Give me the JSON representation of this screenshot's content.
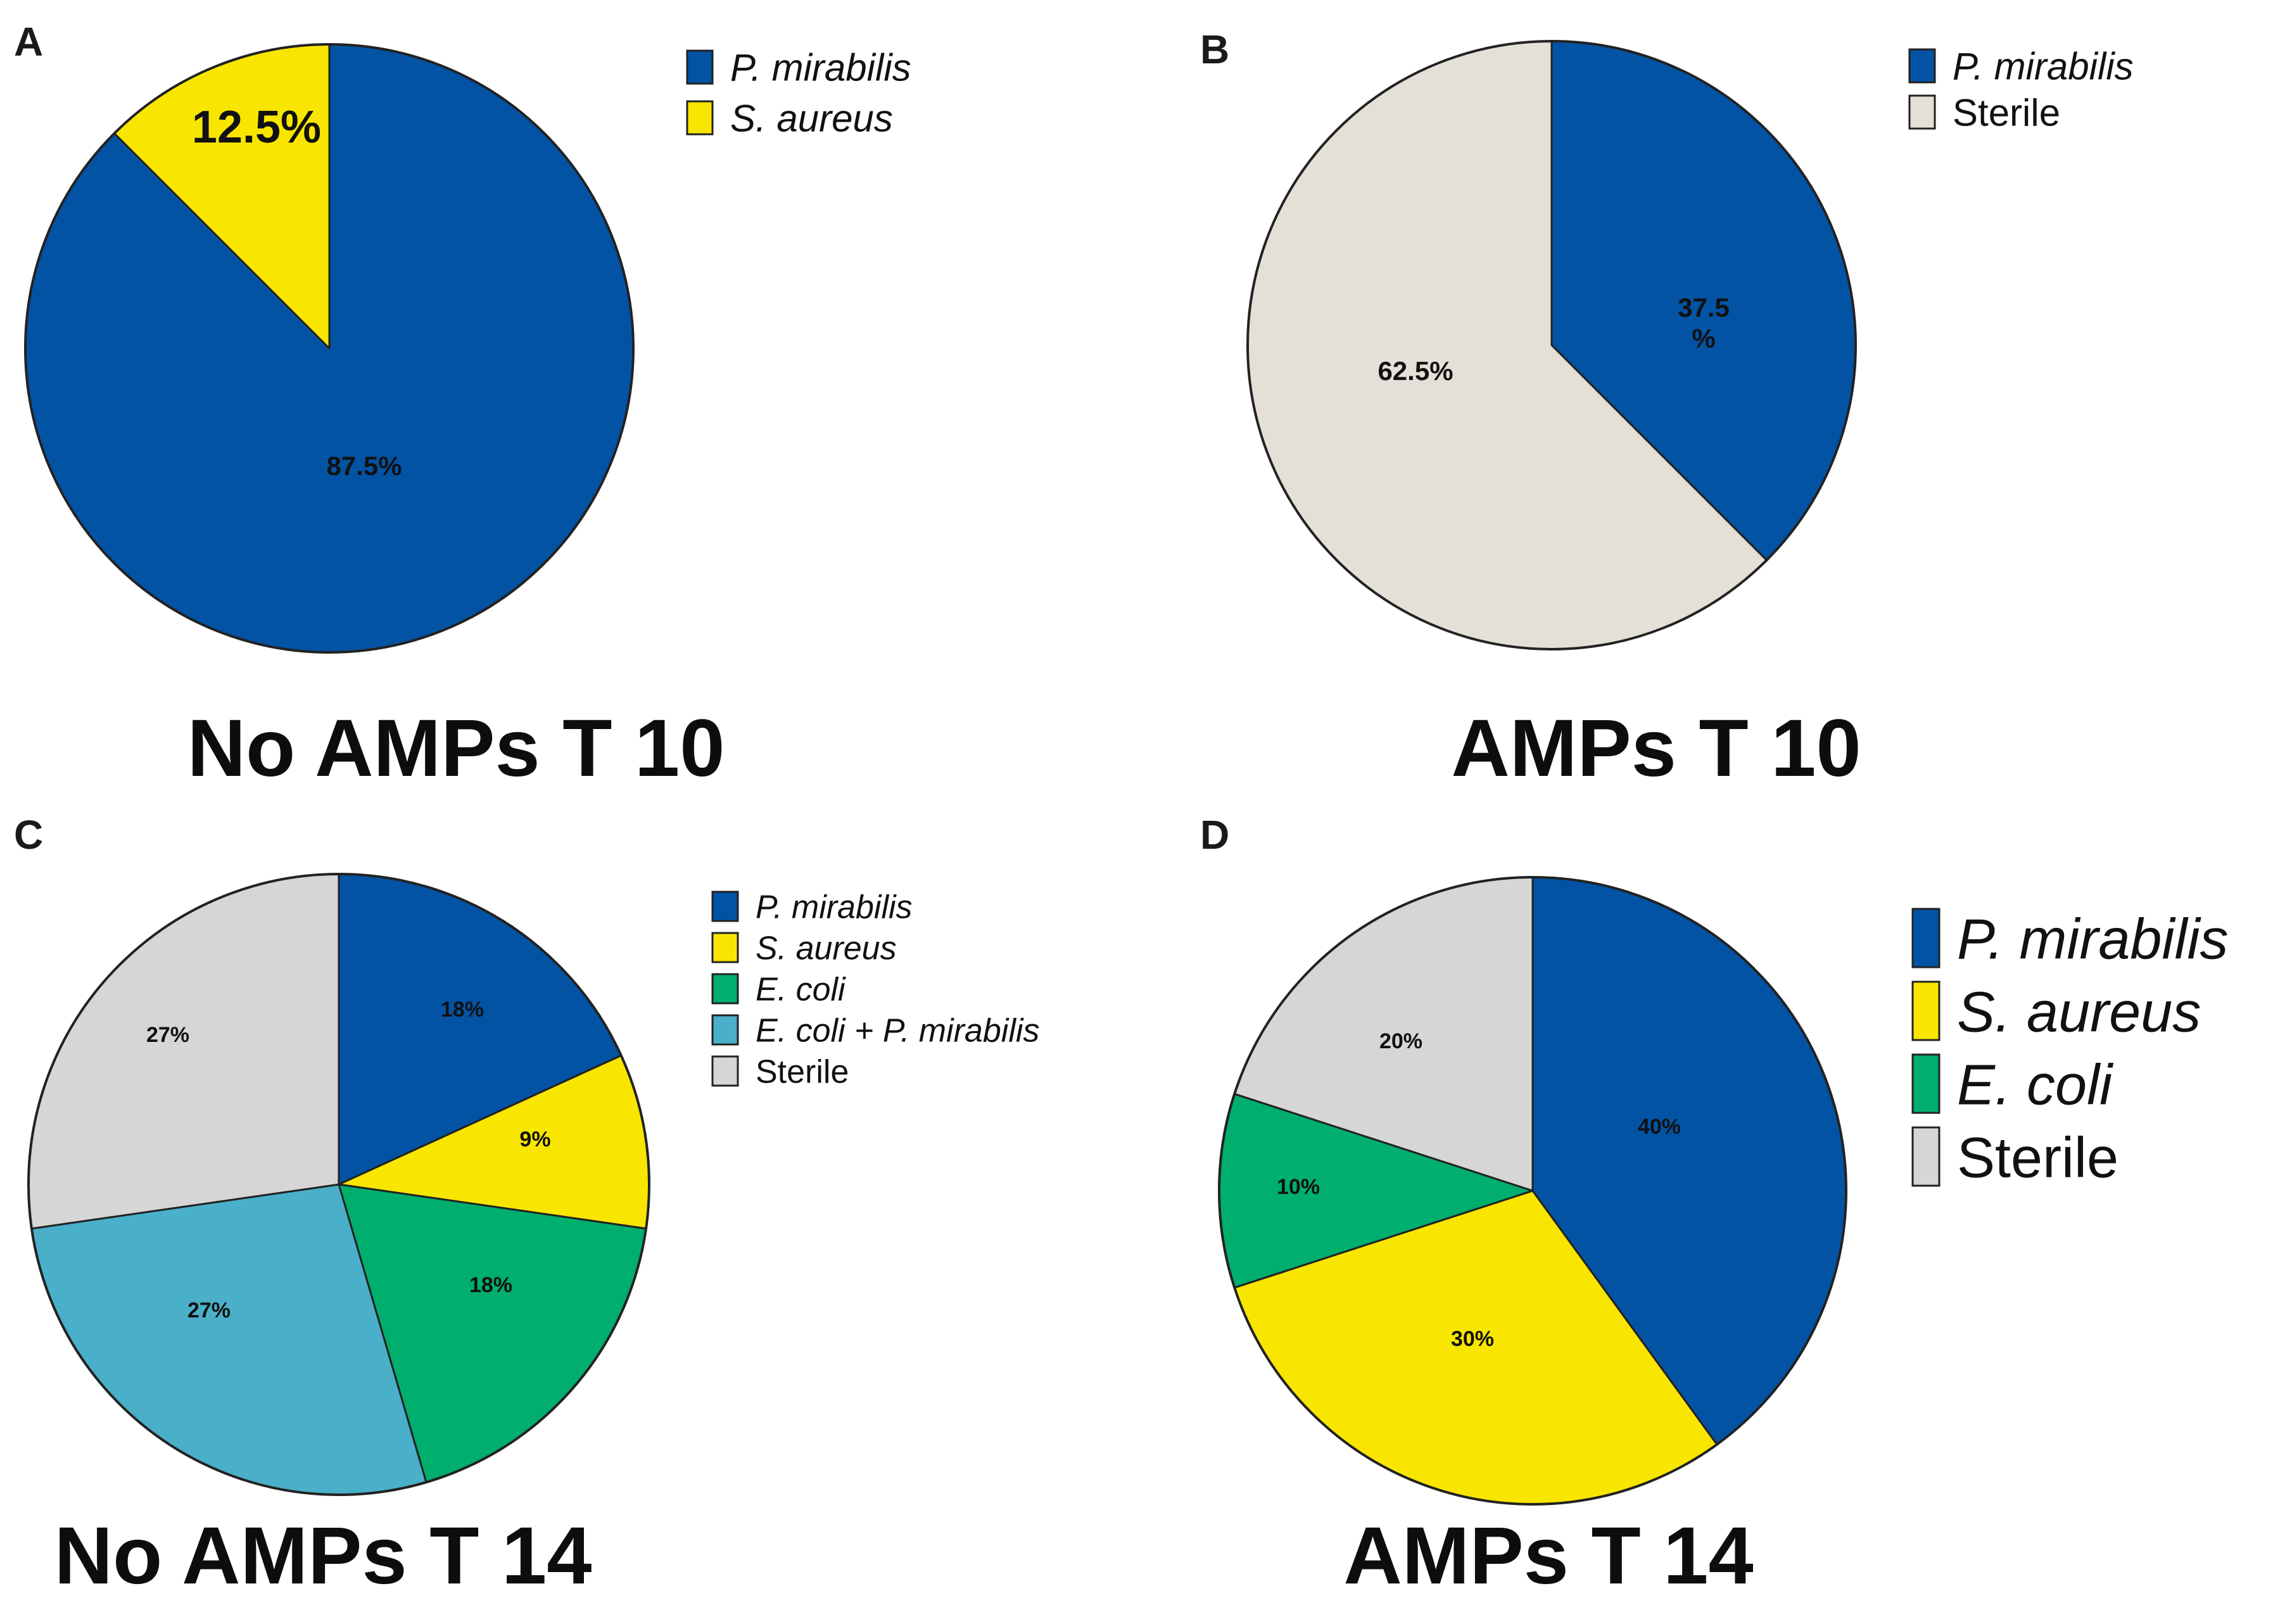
{
  "chart_data": [
    {
      "type": "pie",
      "panel": "A",
      "title": "No AMPs T 10",
      "legend": [
        {
          "label": "P. mirabilis",
          "italic": true
        },
        {
          "label": "S. aureus",
          "italic": true
        }
      ],
      "slices": [
        {
          "name": "P. mirabilis",
          "value": 87.5,
          "label": "87.5%",
          "color": "#0353A4"
        },
        {
          "name": "S. aureus",
          "value": 12.5,
          "label": "12.5%",
          "color": "#F9E600"
        }
      ]
    },
    {
      "type": "pie",
      "panel": "B",
      "title": "AMPs T 10",
      "legend": [
        {
          "label": "P. mirabilis",
          "italic": true
        },
        {
          "label": "Sterile",
          "italic": false
        }
      ],
      "slices": [
        {
          "name": "P. mirabilis",
          "value": 37.5,
          "label": "37.5 %",
          "color": "#0353A4"
        },
        {
          "name": "Sterile",
          "value": 62.5,
          "label": "62.5%",
          "color": "#E4E0D7"
        }
      ]
    },
    {
      "type": "pie",
      "panel": "C",
      "title": "No AMPs T 14",
      "legend": [
        {
          "label": "P. mirabilis",
          "italic": true
        },
        {
          "label": "S. aureus",
          "italic": true
        },
        {
          "label": "E. coli",
          "italic": true
        },
        {
          "label": "E. coli + P. mirabilis",
          "italic": true
        },
        {
          "label": "Sterile",
          "italic": false
        }
      ],
      "slices": [
        {
          "name": "P. mirabilis",
          "value": 18,
          "label": "18%",
          "color": "#0353A4"
        },
        {
          "name": "S. aureus",
          "value": 9,
          "label": "9%",
          "color": "#F9E600"
        },
        {
          "name": "E. coli",
          "value": 18,
          "label": "18%",
          "color": "#00AE6E"
        },
        {
          "name": "E. coli + P. mirabilis",
          "value": 27,
          "label": "27%",
          "color": "#4AAFC8"
        },
        {
          "name": "Sterile",
          "value": 27,
          "label": "27%",
          "color": "#D6D6D6"
        }
      ]
    },
    {
      "type": "pie",
      "panel": "D",
      "title": "AMPs T 14",
      "legend": [
        {
          "label": "P. mirabilis",
          "italic": true
        },
        {
          "label": "S. aureus",
          "italic": true
        },
        {
          "label": "E. coli",
          "italic": true
        },
        {
          "label": "Sterile",
          "italic": false
        }
      ],
      "slices": [
        {
          "name": "P. mirabilis",
          "value": 40,
          "label": "40%",
          "color": "#0353A4"
        },
        {
          "name": "S. aureus",
          "value": 30,
          "label": "30%",
          "color": "#F9E600"
        },
        {
          "name": "E. coli",
          "value": 10,
          "label": "10%",
          "color": "#00AE6E"
        },
        {
          "name": "Sterile",
          "value": 20,
          "label": "20%",
          "color": "#D6D6D6"
        }
      ]
    }
  ]
}
